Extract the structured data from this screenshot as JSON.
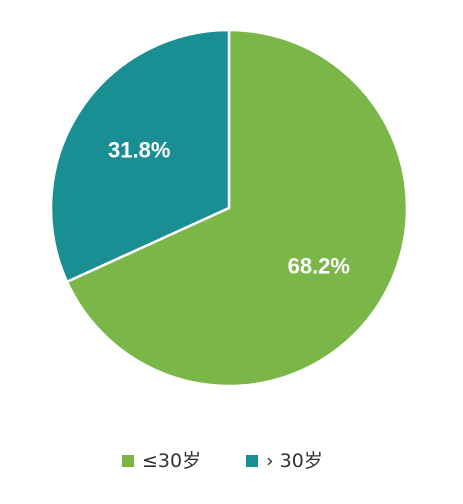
{
  "chart_data": {
    "type": "pie",
    "categories": [
      "≤30岁",
      "› 30岁"
    ],
    "values": [
      68.2,
      31.8
    ],
    "data_labels": [
      "68.2%",
      "31.8%"
    ],
    "colors": [
      "#7ab648",
      "#1a8f93"
    ],
    "start_angle_deg": 0,
    "direction": "clockwise",
    "legend_position": "bottom-center",
    "title": ""
  }
}
